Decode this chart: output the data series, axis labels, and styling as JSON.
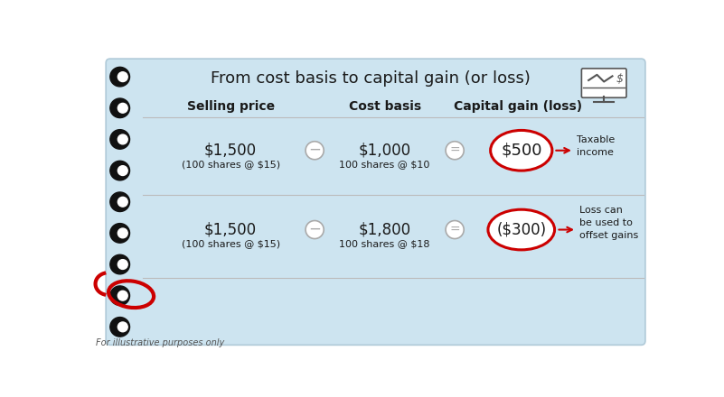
{
  "title": "From cost basis to capital gain (or loss)",
  "bg_color": "#cde4f0",
  "outer_bg": "#ffffff",
  "header_sell": "Selling price",
  "header_cost": "Cost basis",
  "header_gain": "Capital gain (loss)",
  "row1_sell_main": "$1,500",
  "row1_sell_sub": "(100 shares @ $15)",
  "row1_cost_main": "$1,000",
  "row1_cost_sub": "100 shares @ $10",
  "row1_result": "$500",
  "row1_annotation": "Taxable\nincome",
  "row2_sell_main": "$1,500",
  "row2_sell_sub": "(100 shares @ $15)",
  "row2_cost_main": "$1,800",
  "row2_cost_sub": "100 shares @ $18",
  "row2_result": "($300)",
  "row2_annotation": "Loss can\nbe used to\noffset gains",
  "footnote": "For illustrative purposes only",
  "circle_color": "#cc0000",
  "text_color": "#1a1a1a",
  "operator_circle_color": "#aaaaaa",
  "line_color": "#bbbbbb",
  "ring_color": "#111111",
  "red_ring_color": "#cc0000",
  "border_color": "#b0cad8"
}
